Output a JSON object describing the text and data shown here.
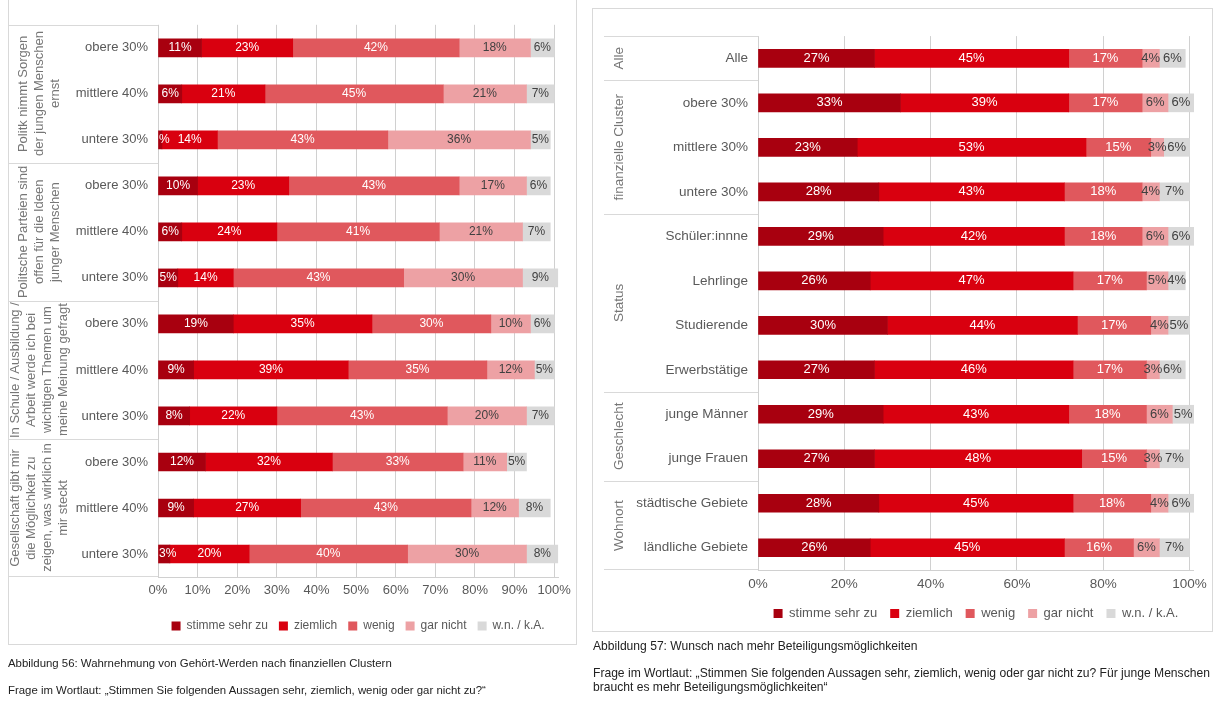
{
  "chart_data": [
    {
      "type": "bar",
      "orientation": "horizontal",
      "stacked": true,
      "categories": [
        "obere 30%",
        "mittlere 40%",
        "untere 30%",
        "obere 30%",
        "mittlere 40%",
        "untere 30%",
        "obere 30%",
        "mittlere 40%",
        "untere 30%",
        "obere 30%",
        "mittlere 40%",
        "untere 30%"
      ],
      "series": [
        {
          "name": "stimme sehr zu",
          "color": "#a8000f",
          "values": [
            11,
            6,
            1,
            10,
            6,
            5,
            19,
            9,
            8,
            12,
            9,
            3
          ],
          "value_labels": [
            "11%",
            "6%",
            "%",
            "10%",
            "6%",
            "5%",
            "19%",
            "9%",
            "8%",
            "12%",
            "9%",
            "3%"
          ]
        },
        {
          "name": "ziemlich",
          "color": "#d9000f",
          "values": [
            23,
            21,
            14,
            23,
            24,
            14,
            35,
            39,
            22,
            32,
            27,
            20
          ],
          "value_labels": [
            "23%",
            "21%",
            "14%",
            "23%",
            "24%",
            "14%",
            "35%",
            "39%",
            "22%",
            "32%",
            "27%",
            "20%"
          ]
        },
        {
          "name": "wenig",
          "color": "#e0585d",
          "values": [
            42,
            45,
            43,
            43,
            41,
            43,
            30,
            35,
            43,
            33,
            43,
            40
          ],
          "value_labels": [
            "42%",
            "45%",
            "43%",
            "43%",
            "41%",
            "43%",
            "30%",
            "35%",
            "43%",
            "33%",
            "43%",
            "40%"
          ]
        },
        {
          "name": "gar nicht",
          "color": "#eda1a4",
          "values": [
            18,
            21,
            36,
            17,
            21,
            30,
            10,
            12,
            20,
            11,
            12,
            30
          ],
          "value_labels": [
            "18%",
            "21%",
            "36%",
            "17%",
            "21%",
            "30%",
            "10%",
            "12%",
            "20%",
            "11%",
            "12%",
            "30%"
          ]
        },
        {
          "name": "w.n. / k.A.",
          "color": "#d9d9d9",
          "values": [
            6,
            7,
            5,
            6,
            7,
            9,
            6,
            5,
            7,
            5,
            8,
            8
          ],
          "value_labels": [
            "6%",
            "7%",
            "5%",
            "6%",
            "7%",
            "9%",
            "6%",
            "5%",
            "7%",
            "5%",
            "8%",
            "8%"
          ]
        }
      ],
      "xlim": [
        0,
        101
      ],
      "xticks": [
        {
          "value": 0,
          "label": "0%"
        },
        {
          "value": 10,
          "label": "10%"
        },
        {
          "value": 20,
          "label": "20%"
        },
        {
          "value": 30,
          "label": "30%"
        },
        {
          "value": 40,
          "label": "40%"
        },
        {
          "value": 50,
          "label": "50%"
        },
        {
          "value": 60,
          "label": "60%"
        },
        {
          "value": 70,
          "label": "70%"
        },
        {
          "value": 80,
          "label": "80%"
        },
        {
          "value": 90,
          "label": "90%"
        },
        {
          "value": 100,
          "label": "100%"
        }
      ],
      "grid": "x",
      "legend": "bottom",
      "annotations": [
        "Politk nimmt Sorgen der jungen Menschen ernst",
        "Politsche Parteien sind offen für die Ideen junger Menschen",
        "In Schule / Ausbildung / Arbeit werde ich bei wichtigen Themen um meine Meinung gefragt",
        "Gesellschaft gibt mir die Möglichkeit zu zeigen, was wirklich in mir steckt",
        "Abbildung 56: Wahrnehmung von Gehört-Werden nach finanziellen Clustern",
        "Frage im Wortlaut: „Stimmen Sie folgenden Aussagen sehr, ziemlich, wenig oder gar nicht zu?“"
      ]
    },
    {
      "type": "bar",
      "orientation": "horizontal",
      "stacked": true,
      "categories": [
        "Alle",
        "obere 30%",
        "mittlere 30%",
        "untere 30%",
        "Schüler:innne",
        "Lehrlinge",
        "Studierende",
        "Erwerbstätige",
        "junge Männer",
        "junge Frauen",
        "städtische Gebiete",
        "ländliche Gebiete"
      ],
      "series": [
        {
          "name": "stimme sehr zu",
          "color": "#a8000f",
          "values": [
            27,
            33,
            23,
            28,
            29,
            26,
            30,
            27,
            29,
            27,
            28,
            26
          ],
          "value_labels": [
            "27%",
            "33%",
            "23%",
            "28%",
            "29%",
            "26%",
            "30%",
            "27%",
            "29%",
            "27%",
            "28%",
            "26%"
          ]
        },
        {
          "name": "ziemlich",
          "color": "#d9000f",
          "values": [
            45,
            39,
            53,
            43,
            42,
            47,
            44,
            46,
            43,
            48,
            45,
            45
          ],
          "value_labels": [
            "45%",
            "39%",
            "53%",
            "43%",
            "42%",
            "47%",
            "44%",
            "46%",
            "43%",
            "48%",
            "45%",
            "45%"
          ]
        },
        {
          "name": "wenig",
          "color": "#e0585d",
          "values": [
            17,
            17,
            15,
            18,
            18,
            17,
            17,
            17,
            18,
            15,
            18,
            16
          ],
          "value_labels": [
            "17%",
            "17%",
            "15%",
            "18%",
            "18%",
            "17%",
            "17%",
            "17%",
            "18%",
            "15%",
            "18%",
            "16%"
          ]
        },
        {
          "name": "gar nicht",
          "color": "#eda1a4",
          "values": [
            4,
            6,
            3,
            4,
            6,
            5,
            4,
            3,
            6,
            3,
            4,
            6
          ],
          "value_labels": [
            "4%",
            "6%",
            "3%",
            "4%",
            "6%",
            "5%",
            "4%",
            "3%",
            "6%",
            "3%",
            "4%",
            "6%"
          ]
        },
        {
          "name": "w.n. / k.A.",
          "color": "#d9d9d9",
          "values": [
            6,
            6,
            6,
            7,
            6,
            4,
            5,
            6,
            5,
            7,
            6,
            7
          ],
          "value_labels": [
            "6%",
            "6%",
            "6%",
            "7%",
            "6%",
            "4%",
            "5%",
            "6%",
            "5%",
            "7%",
            "6%",
            "7%"
          ]
        }
      ],
      "xlim": [
        0,
        101
      ],
      "xticks": [
        {
          "value": 0,
          "label": "0%"
        },
        {
          "value": 20,
          "label": "20%"
        },
        {
          "value": 40,
          "label": "40%"
        },
        {
          "value": 60,
          "label": "60%"
        },
        {
          "value": 80,
          "label": "80%"
        },
        {
          "value": 100,
          "label": "100%"
        }
      ],
      "grid": "x",
      "legend": "bottom",
      "annotations": [
        "Alle",
        "finanzielle Cluster",
        "Status",
        "Geschlecht",
        "Wohnort",
        "Abbildung 57: Wunsch nach mehr Beteiligungsmöglichkeiten",
        "Frage im Wortlaut: „Stimmen Sie folgenden Aussagen sehr, ziemlich, wenig oder gar nicht zu? Für junge Menschen braucht es mehr Beteiligungsmöglichkeiten“"
      ]
    }
  ]
}
